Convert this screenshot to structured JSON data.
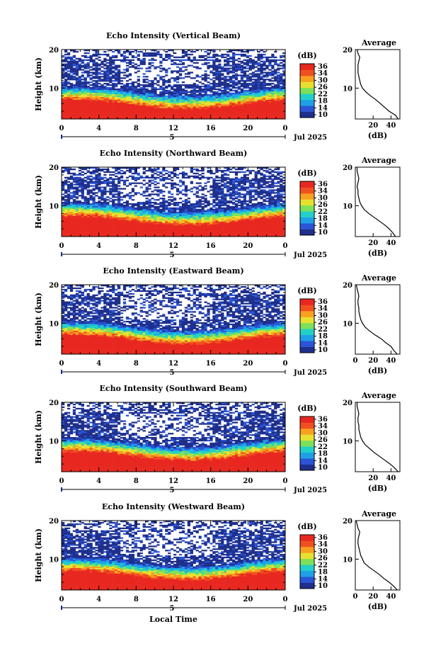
{
  "figure": {
    "xlabel": "Local Time",
    "date_label": "Jul 2025",
    "day_label": "5",
    "colorbar_title": "(dB)",
    "colorbar_ticks": [
      "36",
      "34",
      "30",
      "26",
      "22",
      "18",
      "14",
      "10"
    ],
    "colormap": [
      "#1e2f8c",
      "#2b55d6",
      "#1fa0e8",
      "#22d0c8",
      "#7de05a",
      "#e8e030",
      "#f8a020",
      "#f05020",
      "#e82820"
    ]
  },
  "chart_data": [
    {
      "type": "heatmap",
      "title": "Echo Intensity (Vertical Beam)",
      "ylabel": "Height (km)",
      "xlabel": "",
      "x_ticks": [
        "0",
        "4",
        "8",
        "12",
        "16",
        "20",
        "0"
      ],
      "y_ticks": [
        "20",
        "10"
      ],
      "xlim": [
        0,
        24
      ],
      "ylim": [
        2,
        20
      ],
      "colorbar": {
        "label": "(dB)",
        "range": [
          10,
          38
        ]
      },
      "profile": {
        "title": "Average",
        "xlabel": "(dB)",
        "x_ticks": [
          "20",
          "40"
        ],
        "y_ticks": [
          "20",
          "10"
        ],
        "xlim": [
          0,
          50
        ],
        "height": [
          2,
          3,
          4,
          5,
          6,
          7,
          8,
          9,
          10,
          11,
          12,
          13,
          14,
          15,
          16,
          17,
          18,
          19,
          20
        ],
        "intensity": [
          48,
          45,
          38,
          33,
          28,
          23,
          17,
          12,
          8,
          6,
          5,
          4,
          3,
          3,
          3,
          4,
          5,
          3,
          2
        ]
      }
    },
    {
      "type": "heatmap",
      "title": "Echo Intensity (Northward Beam)",
      "ylabel": "Height (km)",
      "xlabel": "",
      "x_ticks": [
        "0",
        "4",
        "8",
        "12",
        "16",
        "20",
        "0"
      ],
      "y_ticks": [
        "20",
        "10"
      ],
      "xlim": [
        0,
        24
      ],
      "ylim": [
        2,
        20
      ],
      "colorbar": {
        "label": "(dB)",
        "range": [
          10,
          38
        ]
      },
      "profile": {
        "title": "Average",
        "xlabel": "(dB)",
        "x_ticks": [
          "20",
          "40"
        ],
        "y_ticks": [
          "20",
          "10"
        ],
        "xlim": [
          0,
          50
        ],
        "height": [
          2,
          3,
          4,
          5,
          6,
          7,
          8,
          9,
          10,
          11,
          12,
          13,
          14,
          15,
          16,
          17,
          18,
          19,
          20
        ],
        "intensity": [
          45,
          42,
          38,
          33,
          27,
          21,
          15,
          10,
          7,
          5,
          4,
          3,
          3,
          2,
          3,
          4,
          3,
          2,
          2
        ]
      }
    },
    {
      "type": "heatmap",
      "title": "Echo Intensity (Eastward Beam)",
      "ylabel": "Height (km)",
      "xlabel": "",
      "x_ticks": [
        "0",
        "4",
        "8",
        "12",
        "16",
        "20",
        "0"
      ],
      "y_ticks": [
        "20",
        "10"
      ],
      "xlim": [
        0,
        24
      ],
      "ylim": [
        2,
        20
      ],
      "colorbar": {
        "label": "(dB)",
        "range": [
          10,
          38
        ]
      },
      "profile": {
        "title": "Average",
        "xlabel": "(dB)",
        "x_ticks": [
          "0",
          "20",
          "40"
        ],
        "y_ticks": [
          "20",
          "10"
        ],
        "xlim": [
          0,
          50
        ],
        "height": [
          2,
          3,
          4,
          5,
          6,
          7,
          8,
          9,
          10,
          11,
          12,
          13,
          14,
          15,
          16,
          17,
          18,
          19,
          20
        ],
        "intensity": [
          47,
          43,
          40,
          34,
          29,
          22,
          16,
          11,
          8,
          6,
          5,
          4,
          4,
          3,
          3,
          4,
          3,
          2,
          1
        ]
      }
    },
    {
      "type": "heatmap",
      "title": "Echo Intensity (Southward Beam)",
      "ylabel": "Height (km)",
      "xlabel": "",
      "x_ticks": [
        "0",
        "4",
        "8",
        "12",
        "16",
        "20",
        "0"
      ],
      "y_ticks": [
        "20",
        "10"
      ],
      "xlim": [
        0,
        24
      ],
      "ylim": [
        2,
        20
      ],
      "colorbar": {
        "label": "(dB)",
        "range": [
          10,
          38
        ]
      },
      "profile": {
        "title": "Average",
        "xlabel": "(dB)",
        "x_ticks": [
          "20",
          "40"
        ],
        "y_ticks": [
          "20",
          "10"
        ],
        "xlim": [
          0,
          50
        ],
        "height": [
          2,
          3,
          4,
          5,
          6,
          7,
          8,
          9,
          10,
          11,
          12,
          13,
          14,
          15,
          16,
          17,
          18,
          19,
          20
        ],
        "intensity": [
          48,
          44,
          39,
          33,
          27,
          21,
          16,
          11,
          8,
          6,
          5,
          4,
          4,
          3,
          3,
          4,
          3,
          2,
          2
        ]
      }
    },
    {
      "type": "heatmap",
      "title": "Echo Intensity (Westward Beam)",
      "ylabel": "Height (km)",
      "xlabel": "Local Time",
      "x_ticks": [
        "0",
        "4",
        "8",
        "12",
        "16",
        "20",
        "0"
      ],
      "y_ticks": [
        "20",
        "10"
      ],
      "xlim": [
        0,
        24
      ],
      "ylim": [
        2,
        20
      ],
      "colorbar": {
        "label": "(dB)",
        "range": [
          10,
          38
        ]
      },
      "profile": {
        "title": "Average",
        "xlabel": "(dB)",
        "x_ticks": [
          "0",
          "20",
          "40"
        ],
        "y_ticks": [
          "20",
          "10"
        ],
        "xlim": [
          0,
          50
        ],
        "height": [
          2,
          3,
          4,
          5,
          6,
          7,
          8,
          9,
          10,
          11,
          12,
          13,
          14,
          15,
          16,
          17,
          18,
          19,
          20
        ],
        "intensity": [
          47,
          43,
          38,
          32,
          27,
          21,
          15,
          10,
          8,
          6,
          5,
          4,
          3,
          3,
          4,
          5,
          3,
          2,
          1
        ]
      }
    }
  ]
}
